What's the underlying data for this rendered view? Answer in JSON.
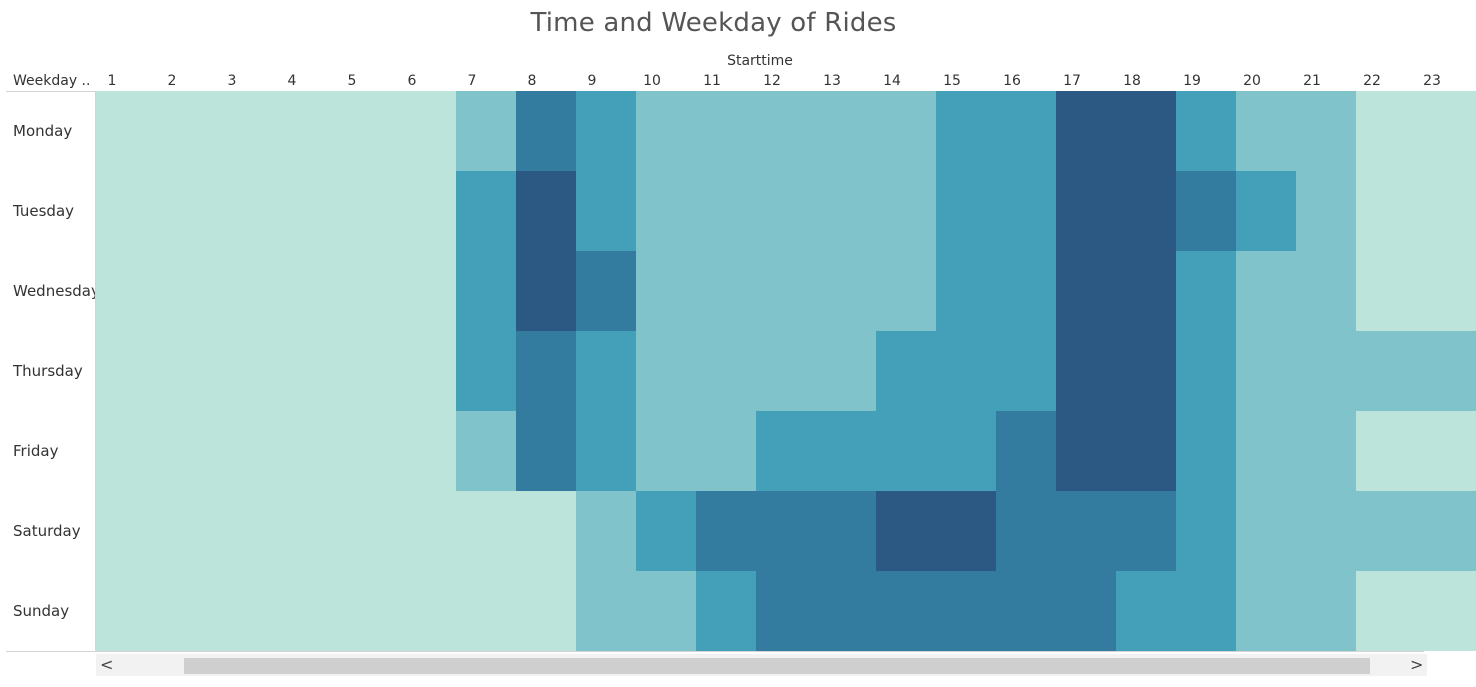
{
  "chart_data": {
    "type": "heatmap",
    "title": "Time and Weekday of Rides",
    "x_header": "Starttime",
    "y_header": "Weekday ..",
    "x": [
      "1",
      "2",
      "3",
      "4",
      "5",
      "6",
      "7",
      "8",
      "9",
      "10",
      "11",
      "12",
      "13",
      "14",
      "15",
      "16",
      "17",
      "18",
      "19",
      "20",
      "21",
      "22",
      "23"
    ],
    "y": [
      "Monday",
      "Tuesday",
      "Wednesday",
      "Thursday",
      "Friday",
      "Saturday",
      "Sunday"
    ],
    "z": [
      [
        0,
        0,
        0,
        0,
        0,
        0,
        1,
        3,
        2,
        1,
        1,
        1,
        1,
        1,
        2,
        2,
        4,
        4,
        2,
        1,
        1,
        0,
        0
      ],
      [
        0,
        0,
        0,
        0,
        0,
        0,
        2,
        4,
        2,
        1,
        1,
        1,
        1,
        1,
        2,
        2,
        4,
        4,
        3,
        2,
        1,
        0,
        0
      ],
      [
        0,
        0,
        0,
        0,
        0,
        0,
        2,
        4,
        3,
        1,
        1,
        1,
        1,
        1,
        2,
        2,
        4,
        4,
        2,
        1,
        1,
        0,
        0
      ],
      [
        0,
        0,
        0,
        0,
        0,
        0,
        2,
        3,
        2,
        1,
        1,
        1,
        1,
        2,
        2,
        2,
        4,
        4,
        2,
        1,
        1,
        1,
        1
      ],
      [
        0,
        0,
        0,
        0,
        0,
        0,
        1,
        3,
        2,
        1,
        1,
        2,
        2,
        2,
        2,
        3,
        4,
        4,
        2,
        1,
        1,
        0,
        0
      ],
      [
        0,
        0,
        0,
        0,
        0,
        0,
        0,
        0,
        1,
        2,
        3,
        3,
        3,
        4,
        4,
        3,
        3,
        3,
        2,
        1,
        1,
        1,
        1
      ],
      [
        0,
        0,
        0,
        0,
        0,
        0,
        0,
        0,
        1,
        1,
        2,
        3,
        3,
        3,
        3,
        3,
        3,
        2,
        2,
        1,
        1,
        0,
        0
      ]
    ],
    "z_scale": "relative ride volume level (0 = lowest, 4 = highest)",
    "colors": [
      "#bde4db",
      "#80c3ca",
      "#44a0b8",
      "#337b9f",
      "#2c5884"
    ]
  },
  "scroll": {
    "left_arrow": "<",
    "right_arrow": ">"
  }
}
